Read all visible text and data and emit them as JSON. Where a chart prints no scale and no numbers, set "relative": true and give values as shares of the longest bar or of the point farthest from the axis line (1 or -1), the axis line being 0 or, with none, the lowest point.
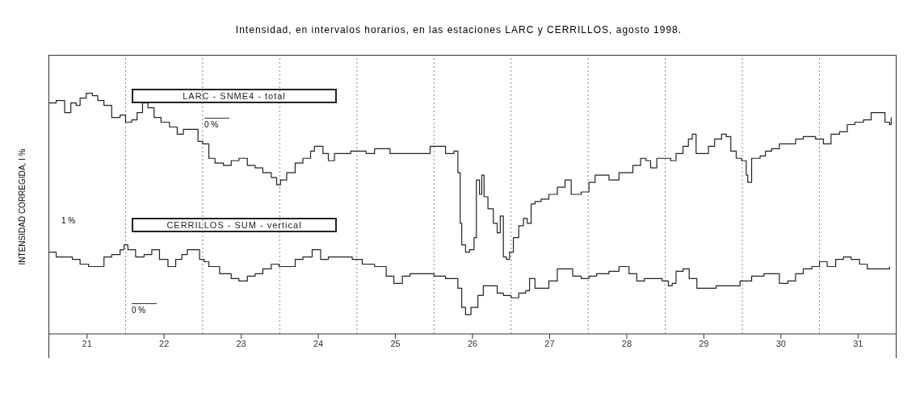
{
  "chart_data": {
    "type": "step",
    "title": "Intensidad, en intervalos horarios, en las estaciones LARC y CERRILLOS, agosto 1998.",
    "ylabel": "INTENSIDAD CORREGIDA, I %",
    "relative": true,
    "legend": false,
    "tick_labels": "x",
    "xlim": [
      21,
      32
    ],
    "xticks": [
      {
        "value": 21.5,
        "label": "21"
      },
      {
        "value": 22.5,
        "label": "22"
      },
      {
        "value": 23.5,
        "label": "23"
      },
      {
        "value": 24.5,
        "label": "24"
      },
      {
        "value": 25.5,
        "label": "25"
      },
      {
        "value": 26.5,
        "label": "26"
      },
      {
        "value": 27.5,
        "label": "27"
      },
      {
        "value": 28.5,
        "label": "28"
      },
      {
        "value": 29.5,
        "label": "29"
      },
      {
        "value": 30.5,
        "label": "30"
      },
      {
        "value": 31.5,
        "label": "31"
      }
    ],
    "ref_lines": [
      {
        "axis": "x",
        "value": 22,
        "line_style": "dotted",
        "color": "#888888"
      },
      {
        "axis": "x",
        "value": 23,
        "line_style": "dotted",
        "color": "#888888"
      },
      {
        "axis": "x",
        "value": 24,
        "line_style": "dotted",
        "color": "#888888"
      },
      {
        "axis": "x",
        "value": 25,
        "line_style": "dotted",
        "color": "#888888"
      },
      {
        "axis": "x",
        "value": 26,
        "line_style": "dotted",
        "color": "#888888"
      },
      {
        "axis": "x",
        "value": 27,
        "line_style": "dotted",
        "color": "#888888"
      },
      {
        "axis": "x",
        "value": 28,
        "line_style": "dotted",
        "color": "#888888"
      },
      {
        "axis": "x",
        "value": 29,
        "line_style": "dotted",
        "color": "#888888"
      },
      {
        "axis": "x",
        "value": 30,
        "line_style": "dotted",
        "color": "#888888"
      },
      {
        "axis": "x",
        "value": 31,
        "line_style": "dotted",
        "color": "#888888"
      }
    ],
    "annotations": [
      "0 %",
      "1 %",
      "0 %"
    ],
    "series": [
      {
        "name": "LARC - SNME4 - total",
        "color": "#222222",
        "x": [
          21.0,
          21.1,
          21.21,
          21.29,
          21.36,
          21.41,
          21.49,
          21.57,
          21.64,
          21.72,
          21.82,
          21.93,
          22.0,
          22.08,
          22.15,
          22.22,
          22.29,
          22.37,
          22.46,
          22.57,
          22.67,
          22.75,
          22.84,
          22.94,
          23.0,
          23.08,
          23.16,
          23.27,
          23.37,
          23.47,
          23.58,
          23.68,
          23.78,
          23.89,
          23.96,
          24.01,
          24.09,
          24.2,
          24.3,
          24.4,
          24.45,
          24.56,
          24.63,
          24.71,
          24.92,
          25.12,
          25.23,
          25.43,
          25.64,
          25.95,
          26.15,
          26.26,
          26.31,
          26.34,
          26.36,
          26.41,
          26.46,
          26.52,
          26.55,
          26.59,
          26.62,
          26.65,
          26.7,
          26.77,
          26.82,
          26.86,
          26.9,
          26.94,
          26.98,
          27.03,
          27.1,
          27.16,
          27.21,
          27.26,
          27.31,
          27.39,
          27.49,
          27.6,
          27.7,
          27.78,
          27.91,
          28.01,
          28.09,
          28.16,
          28.27,
          28.4,
          28.58,
          28.68,
          28.75,
          28.81,
          28.89,
          28.99,
          29.07,
          29.14,
          29.23,
          29.3,
          29.35,
          29.4,
          29.47,
          29.56,
          29.64,
          29.73,
          29.79,
          29.85,
          29.92,
          29.99,
          30.05,
          30.07,
          30.12,
          30.23,
          30.3,
          30.38,
          30.48,
          30.69,
          30.79,
          30.95,
          31.05,
          31.15,
          31.26,
          31.36,
          31.46,
          31.57,
          31.67,
          31.77,
          31.85,
          31.91,
          31.93
        ],
        "values": [
          0.96,
          0.97,
          0.92,
          0.96,
          0.95,
          0.98,
          1.0,
          0.99,
          0.97,
          0.95,
          0.9,
          0.91,
          0.88,
          0.89,
          0.92,
          0.96,
          0.94,
          0.9,
          0.88,
          0.86,
          0.83,
          0.85,
          0.85,
          0.8,
          0.79,
          0.73,
          0.71,
          0.7,
          0.72,
          0.73,
          0.7,
          0.69,
          0.67,
          0.65,
          0.62,
          0.64,
          0.67,
          0.71,
          0.73,
          0.76,
          0.78,
          0.75,
          0.72,
          0.75,
          0.76,
          0.75,
          0.77,
          0.75,
          0.75,
          0.78,
          0.75,
          0.76,
          0.67,
          0.46,
          0.37,
          0.34,
          0.35,
          0.4,
          0.64,
          0.58,
          0.66,
          0.57,
          0.52,
          0.46,
          0.42,
          0.49,
          0.32,
          0.31,
          0.34,
          0.4,
          0.45,
          0.48,
          0.46,
          0.54,
          0.55,
          0.56,
          0.58,
          0.61,
          0.64,
          0.58,
          0.59,
          0.63,
          0.66,
          0.66,
          0.64,
          0.67,
          0.7,
          0.73,
          0.72,
          0.69,
          0.73,
          0.73,
          0.72,
          0.75,
          0.78,
          0.81,
          0.83,
          0.75,
          0.75,
          0.78,
          0.81,
          0.83,
          0.82,
          0.76,
          0.73,
          0.72,
          0.66,
          0.63,
          0.73,
          0.74,
          0.76,
          0.77,
          0.79,
          0.81,
          0.82,
          0.81,
          0.79,
          0.83,
          0.84,
          0.87,
          0.88,
          0.89,
          0.92,
          0.92,
          0.88,
          0.87,
          0.9
        ]
      },
      {
        "name": "CERRILLOS - SUM - vertical",
        "color": "#222222",
        "x": [
          21.0,
          21.1,
          21.21,
          21.31,
          21.41,
          21.52,
          21.62,
          21.72,
          21.82,
          21.93,
          21.98,
          22.03,
          22.13,
          22.24,
          22.34,
          22.44,
          22.55,
          22.65,
          22.73,
          22.8,
          22.91,
          22.96,
          23.02,
          23.08,
          23.22,
          23.37,
          23.47,
          23.58,
          23.68,
          23.78,
          23.89,
          23.99,
          24.09,
          24.2,
          24.3,
          24.42,
          24.53,
          24.63,
          24.73,
          24.84,
          24.94,
          25.07,
          25.23,
          25.38,
          25.48,
          25.59,
          25.69,
          25.85,
          26.0,
          26.15,
          26.26,
          26.31,
          26.36,
          26.41,
          26.48,
          26.57,
          26.64,
          26.72,
          26.82,
          26.9,
          27.0,
          27.1,
          27.19,
          27.24,
          27.31,
          27.39,
          27.49,
          27.6,
          27.7,
          27.8,
          27.91,
          28.01,
          28.11,
          28.27,
          28.4,
          28.53,
          28.63,
          28.73,
          28.84,
          28.96,
          29.04,
          29.09,
          29.14,
          29.23,
          29.31,
          29.41,
          29.56,
          29.66,
          29.76,
          29.87,
          29.97,
          30.12,
          30.28,
          30.38,
          30.48,
          30.59,
          30.69,
          30.79,
          30.9,
          31.0,
          31.1,
          31.21,
          31.31,
          31.41,
          31.52,
          31.62,
          31.72,
          31.91
        ],
        "values": [
          0.34,
          0.32,
          0.32,
          0.31,
          0.29,
          0.28,
          0.28,
          0.32,
          0.33,
          0.35,
          0.37,
          0.35,
          0.32,
          0.33,
          0.35,
          0.31,
          0.28,
          0.31,
          0.33,
          0.35,
          0.35,
          0.31,
          0.3,
          0.28,
          0.25,
          0.23,
          0.22,
          0.24,
          0.25,
          0.27,
          0.29,
          0.28,
          0.28,
          0.31,
          0.32,
          0.35,
          0.31,
          0.32,
          0.32,
          0.32,
          0.31,
          0.29,
          0.28,
          0.24,
          0.21,
          0.24,
          0.25,
          0.25,
          0.24,
          0.23,
          0.23,
          0.19,
          0.11,
          0.08,
          0.11,
          0.16,
          0.2,
          0.2,
          0.17,
          0.16,
          0.15,
          0.17,
          0.18,
          0.23,
          0.19,
          0.19,
          0.22,
          0.27,
          0.27,
          0.24,
          0.23,
          0.24,
          0.25,
          0.26,
          0.28,
          0.25,
          0.22,
          0.23,
          0.23,
          0.22,
          0.2,
          0.21,
          0.26,
          0.27,
          0.23,
          0.19,
          0.19,
          0.2,
          0.2,
          0.2,
          0.22,
          0.24,
          0.25,
          0.25,
          0.21,
          0.22,
          0.25,
          0.27,
          0.28,
          0.3,
          0.28,
          0.31,
          0.32,
          0.31,
          0.29,
          0.27,
          0.27,
          0.28
        ]
      }
    ]
  }
}
